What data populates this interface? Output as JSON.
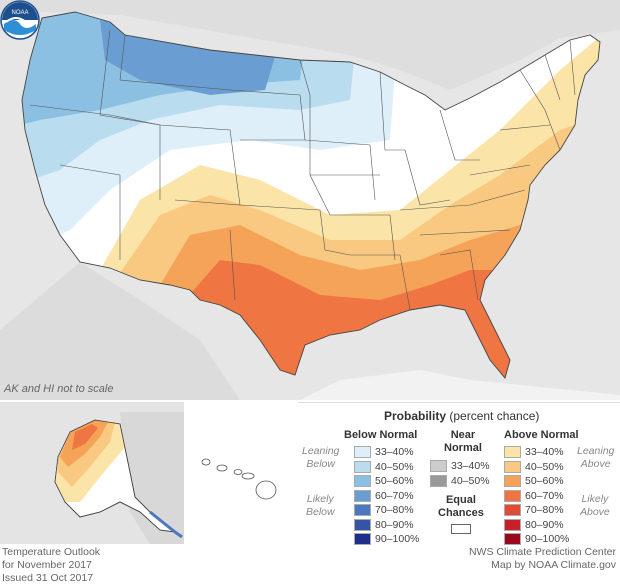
{
  "map": {
    "scale_note": "AK and HI not to scale",
    "agency_logo_text": "NOAA"
  },
  "legend": {
    "title_bold": "Probability",
    "title_rest": " (percent chance)",
    "below_header": "Below Normal",
    "near_header_line1": "Near",
    "near_header_line2": "Normal",
    "above_header": "Above Normal",
    "leaning_below": [
      "Leaning",
      "Below"
    ],
    "likely_below": [
      "Likely",
      "Below"
    ],
    "leaning_above": [
      "Leaning",
      "Above"
    ],
    "likely_above": [
      "Likely",
      "Above"
    ],
    "equal_chances": [
      "Equal",
      "Chances"
    ],
    "below_rows": [
      {
        "label": "33–40%",
        "color": "#deeff9"
      },
      {
        "label": "40–50%",
        "color": "#b9dcef"
      },
      {
        "label": "50–60%",
        "color": "#8cc0e2"
      },
      {
        "label": "60–70%",
        "color": "#6a9ed2"
      },
      {
        "label": "70–80%",
        "color": "#4b78bf"
      },
      {
        "label": "80–90%",
        "color": "#3455a6"
      },
      {
        "label": "90–100%",
        "color": "#1f2e8a"
      }
    ],
    "near_rows": [
      {
        "label": "33–40%",
        "color": "#cccccc"
      },
      {
        "label": "40–50%",
        "color": "#999999"
      }
    ],
    "above_rows": [
      {
        "label": "33–40%",
        "color": "#fbe4a8"
      },
      {
        "label": "40–50%",
        "color": "#fac981"
      },
      {
        "label": "50–60%",
        "color": "#f6a35a"
      },
      {
        "label": "60–70%",
        "color": "#ef7542"
      },
      {
        "label": "70–80%",
        "color": "#e14a33"
      },
      {
        "label": "80–90%",
        "color": "#c42128"
      },
      {
        "label": "90–100%",
        "color": "#9a0a1f"
      }
    ]
  },
  "footer": {
    "left_line1": "Temperature Outlook",
    "left_line2": "for November 2017",
    "left_line3": "Issued 31 Oct 2017",
    "right_line1": "NWS Climate Prediction Center",
    "right_line2": "Map by NOAA Climate.gov"
  }
}
